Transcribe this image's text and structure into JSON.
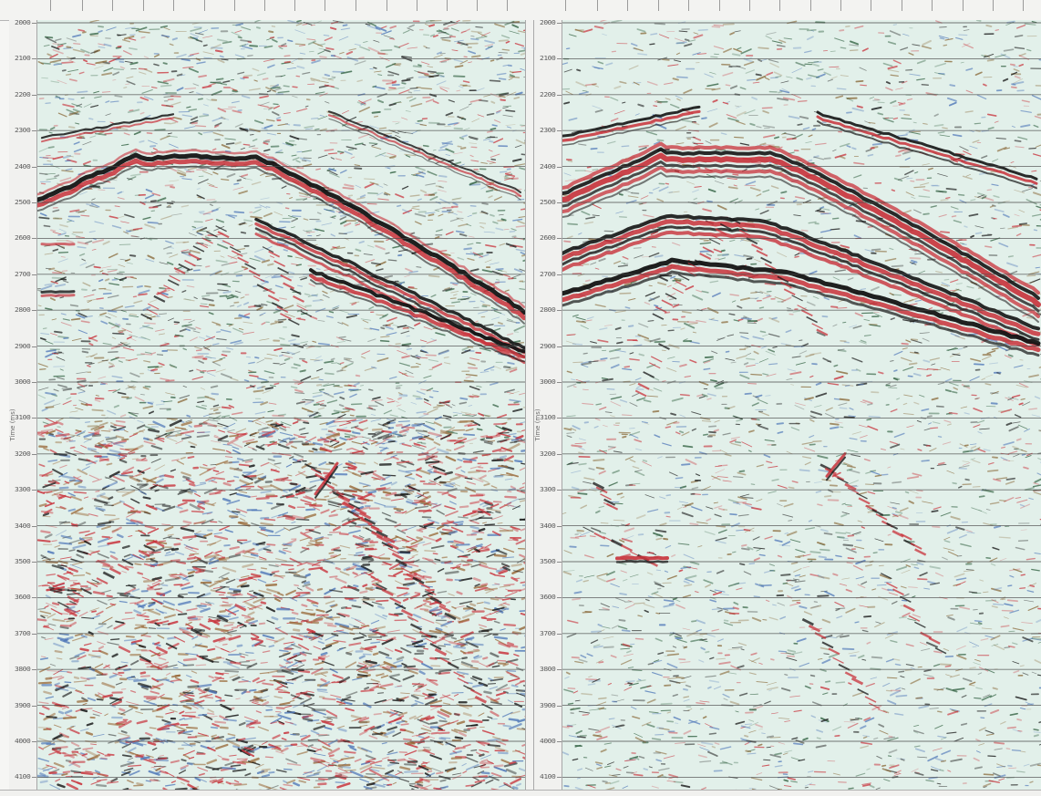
{
  "ruler": {
    "icon": "ruler-ticks"
  },
  "left_panel": {
    "axis_title": "Time (ms)",
    "time_labels": [
      "2000",
      "2100",
      "2200",
      "2300",
      "2400",
      "2500",
      "2600",
      "2700",
      "2800",
      "2900",
      "3000",
      "3100",
      "3200",
      "3300",
      "3400",
      "3500",
      "3600",
      "3700",
      "3800",
      "3900",
      "4000",
      "4100"
    ]
  },
  "right_panel": {
    "axis_title": "Time (ms)",
    "time_labels": [
      "2000",
      "2100",
      "2200",
      "2300",
      "2400",
      "2500",
      "2600",
      "2700",
      "2800",
      "2900",
      "3000",
      "3100",
      "3200",
      "3300",
      "3400",
      "3500",
      "3600",
      "3700",
      "3800",
      "3900",
      "4000",
      "4100"
    ]
  },
  "colors": {
    "background": "#e2f0ea",
    "positive": "#c8313a",
    "negative": "#141414",
    "noise_blue": "#4f77b8",
    "timeline": "#4a4a4a"
  }
}
